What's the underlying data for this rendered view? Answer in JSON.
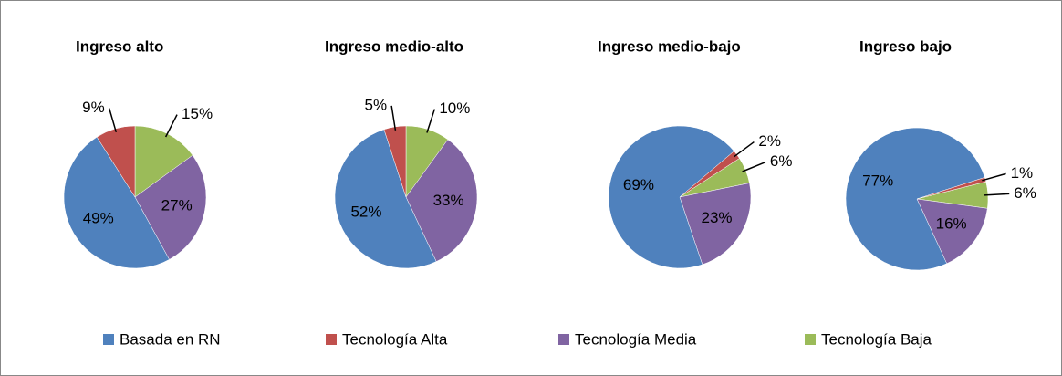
{
  "chart_data": [
    {
      "type": "pie",
      "title": "Ingreso alto",
      "categories": [
        "Basada en RN",
        "Tecnología Alta",
        "Tecnología Media",
        "Tecnología Baja"
      ],
      "values": [
        49,
        9,
        27,
        15
      ],
      "value_labels": [
        "49%",
        "9%",
        "27%",
        "15%"
      ],
      "colors": [
        "#4f81bd",
        "#c0504d",
        "#8064a2",
        "#9bbb59"
      ],
      "first_slice_angle": 0
    },
    {
      "type": "pie",
      "title": "Ingreso medio-alto",
      "categories": [
        "Basada en RN",
        "Tecnología Alta",
        "Tecnología Media",
        "Tecnología Baja"
      ],
      "values": [
        52,
        5,
        33,
        10
      ],
      "value_labels": [
        "52%",
        "5%",
        "33%",
        "10%"
      ],
      "colors": [
        "#4f81bd",
        "#c0504d",
        "#8064a2",
        "#9bbb59"
      ],
      "first_slice_angle": 0
    },
    {
      "type": "pie",
      "title": "Ingreso medio-bajo",
      "categories": [
        "Basada en RN",
        "Tecnología Alta",
        "Tecnología Media",
        "Tecnología Baja"
      ],
      "values": [
        69,
        2,
        23,
        6
      ],
      "value_labels": [
        "69%",
        "2%",
        "23%",
        "6%"
      ],
      "colors": [
        "#4f81bd",
        "#c0504d",
        "#8064a2",
        "#9bbb59"
      ],
      "first_slice_angle": 57
    },
    {
      "type": "pie",
      "title": "Ingreso bajo",
      "categories": [
        "Basada en RN",
        "Tecnología Alta",
        "Tecnología Media",
        "Tecnología Baja"
      ],
      "values": [
        77,
        1,
        16,
        6
      ],
      "value_labels": [
        "77%",
        "1%",
        "16%",
        "6%"
      ],
      "colors": [
        "#4f81bd",
        "#c0504d",
        "#8064a2",
        "#9bbb59"
      ],
      "first_slice_angle": 76
    }
  ]
}
